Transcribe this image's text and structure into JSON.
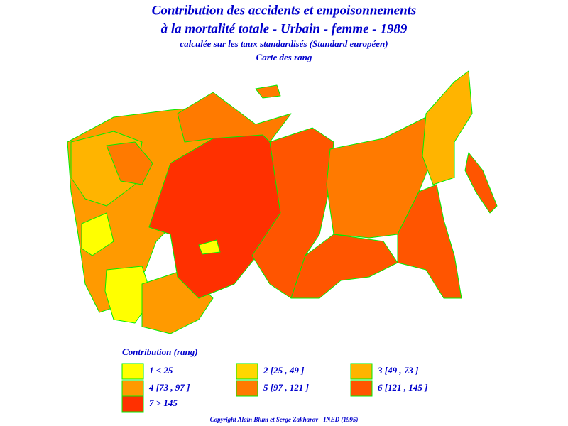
{
  "header": {
    "title_line_1": "Contribution des accidents et empoisonnements",
    "title_line_2": "à la mortalité totale - Urbain - femme - 1989",
    "subtitle": "calculée sur les taux standardisés (Standard européen)",
    "map_title": "Carte des rang"
  },
  "legend": {
    "title": "Contribution (rang)",
    "items": [
      {
        "label": "1 < 25",
        "color": "#ffff00"
      },
      {
        "label": "2 [25 , 49 ]",
        "color": "#ffd700"
      },
      {
        "label": "3 [49 , 73 ]",
        "color": "#ffb400"
      },
      {
        "label": "4 [73 , 97 ]",
        "color": "#ff9a00"
      },
      {
        "label": "5 [97 , 121 ]",
        "color": "#ff7a00"
      },
      {
        "label": "6 [121 , 145 ]",
        "color": "#ff5500"
      },
      {
        "label": "7 > 145",
        "color": "#ff3000"
      }
    ]
  },
  "footer": {
    "copyright": "Copyright Alain Blum et Serge Zakharov - INED (1995)"
  }
}
